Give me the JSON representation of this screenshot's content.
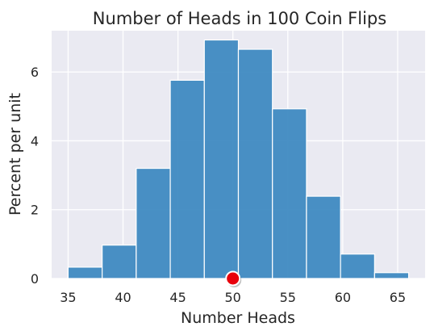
{
  "chart_data": {
    "type": "bar",
    "title": "Number of Heads in 100 Coin Flips",
    "xlabel": "Number Heads",
    "ylabel": "Percent per unit",
    "xlim": [
      33.5,
      67.5
    ],
    "ylim": [
      0,
      7.2
    ],
    "x_ticks": [
      35,
      40,
      45,
      50,
      55,
      60,
      65
    ],
    "y_ticks": [
      0,
      2,
      4,
      6
    ],
    "grid": true,
    "bar_color": "#3a87c0",
    "background_color": "#eaeaf2",
    "bins": [
      {
        "start": 35.0,
        "end": 38.1,
        "value": 0.33
      },
      {
        "start": 38.1,
        "end": 41.2,
        "value": 0.97
      },
      {
        "start": 41.2,
        "end": 44.3,
        "value": 3.2
      },
      {
        "start": 44.3,
        "end": 47.4,
        "value": 5.76
      },
      {
        "start": 47.4,
        "end": 50.5,
        "value": 6.93
      },
      {
        "start": 50.5,
        "end": 53.6,
        "value": 6.66
      },
      {
        "start": 53.6,
        "end": 56.7,
        "value": 4.93
      },
      {
        "start": 56.7,
        "end": 59.8,
        "value": 2.39
      },
      {
        "start": 59.8,
        "end": 62.9,
        "value": 0.71
      },
      {
        "start": 62.9,
        "end": 66.0,
        "value": 0.17
      }
    ],
    "marker": {
      "x": 50,
      "y": 0,
      "color": "#e8000b"
    }
  }
}
